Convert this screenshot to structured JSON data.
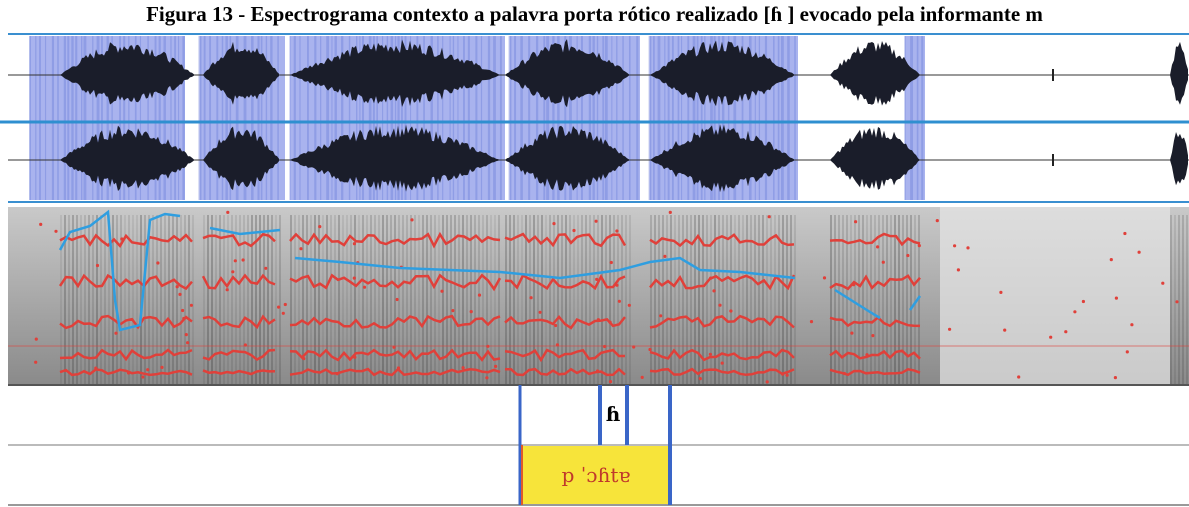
{
  "title": "Figura 13 - Espectrograma contexto a palavra porta rótico realizado [ɦ ] evocado pela informante m",
  "tiers": [
    {
      "label": "ɦ"
    },
    {
      "label": "p ˈɔɦtɐ"
    }
  ]
}
